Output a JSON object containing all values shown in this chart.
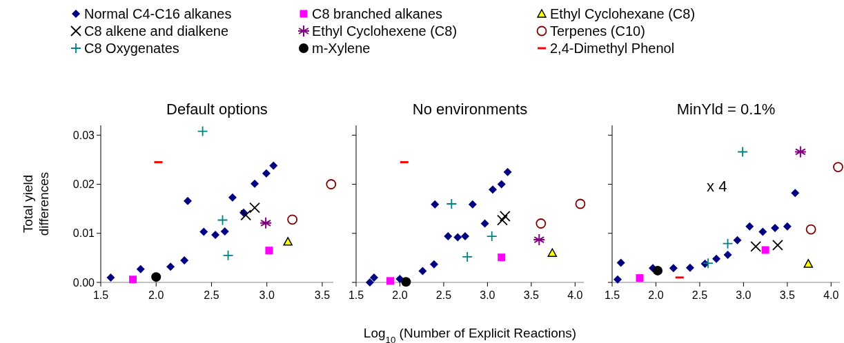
{
  "chart_data": [
    {
      "type": "scatter",
      "title": "Default options",
      "ylabel": "Total yield differences",
      "legend": "top",
      "grid": false,
      "xlim": [
        1.5,
        3.6
      ],
      "xticks": [
        {
          "value": 1.5,
          "label": "1.5"
        },
        {
          "value": 2,
          "label": "2.0"
        },
        {
          "value": 2.5,
          "label": "2.5"
        },
        {
          "value": 3,
          "label": "3.0"
        },
        {
          "value": 3.5,
          "label": "3.5"
        }
      ],
      "ylim": [
        0,
        0.032
      ],
      "yticks": [
        {
          "value": 0,
          "label": "0.00"
        },
        {
          "value": 0.01,
          "label": "0.01"
        },
        {
          "value": 0.02,
          "label": "0.02"
        },
        {
          "value": 0.03,
          "label": "0.03"
        }
      ],
      "series": [
        {
          "name": "Normal C4-C16 alkanes",
          "color": "#000080",
          "marker": "diamond",
          "x": [
            1.59,
            1.86,
            2.13,
            2.255,
            2.285,
            2.43,
            2.535,
            2.62,
            2.69,
            2.79,
            2.89,
            2.995,
            3.06
          ],
          "values": [
            0.001,
            0.0027,
            0.0032,
            0.0045,
            0.0166,
            0.0103,
            0.0097,
            0.0104,
            0.0173,
            0.0142,
            0.0201,
            0.0222,
            0.0238
          ]
        },
        {
          "name": "C8 branched alkanes",
          "color": "#ff00ff",
          "marker": "square",
          "x": [
            1.79,
            3.02
          ],
          "values": [
            0.0006,
            0.0065
          ]
        },
        {
          "name": "Ethyl Cyclohexane (C8)",
          "color": "#ffff00",
          "marker": "triangle",
          "x": [
            3.19
          ],
          "values": [
            0.0083
          ]
        },
        {
          "name": "C8 alkene and dialkene",
          "color": "#000000",
          "marker": "cross",
          "x": [
            2.81,
            2.89
          ],
          "values": [
            0.0137,
            0.0152
          ]
        },
        {
          "name": "Ethyl Cyclohexene (C8)",
          "color": "#800080",
          "marker": "star",
          "x": [
            2.99
          ],
          "values": [
            0.0121
          ]
        },
        {
          "name": "Terpenes (C10)",
          "color": "#800000",
          "marker": "circle-open",
          "x": [
            3.23,
            3.58
          ],
          "values": [
            0.0128,
            0.02
          ]
        },
        {
          "name": "C8 Oxygenates",
          "color": "#008080",
          "marker": "plus",
          "x": [
            2.42,
            2.6,
            2.65
          ],
          "values": [
            0.0308,
            0.0127,
            0.0055
          ]
        },
        {
          "name": "m-Xylene",
          "color": "#000000",
          "marker": "circle",
          "x": [
            2.0
          ],
          "values": [
            0.0011
          ]
        },
        {
          "name": "2,4-Dimethyl Phenol",
          "color": "#ff0000",
          "x": [
            2.02
          ],
          "values": [
            0.0245
          ]
        }
      ]
    },
    {
      "type": "scatter",
      "title": "No environments",
      "xlabel": "Log$_{10}$ (Number of Explicit Reactions)",
      "tick_labels": "x",
      "grid": false,
      "xlim": [
        1.5,
        4.1
      ],
      "xticks": [
        {
          "value": 1.5,
          "label": "1.5"
        },
        {
          "value": 2,
          "label": "2.0"
        },
        {
          "value": 2.5,
          "label": "2.5"
        },
        {
          "value": 3,
          "label": "3.0"
        },
        {
          "value": 3.5,
          "label": "3.5"
        },
        {
          "value": 4,
          "label": "4.0"
        }
      ],
      "ylim": [
        0,
        0.032
      ],
      "yticks": [
        {
          "value": 0,
          "label": null
        },
        {
          "value": 0.01,
          "label": null
        },
        {
          "value": 0.02,
          "label": null
        },
        {
          "value": 0.03,
          "label": null
        }
      ],
      "series": [
        {
          "color": "#000080",
          "marker": "diamond",
          "x": [
            1.657,
            1.705,
            2.0,
            2.26,
            2.39,
            2.4,
            2.55,
            2.66,
            2.745,
            2.83,
            2.97,
            3.06,
            3.16,
            3.23
          ],
          "values": [
            0,
            0.001,
            0.0007,
            0.0023,
            0.0037,
            0.0159,
            0.0094,
            0.0092,
            0.0094,
            0.0159,
            0.012,
            0.0189,
            0.02,
            0.0225
          ]
        },
        {
          "color": "#ff00ff",
          "marker": "square",
          "x": [
            1.89,
            3.16
          ],
          "values": [
            0.0003,
            0.0051
          ]
        },
        {
          "color": "#ffff00",
          "marker": "triangle",
          "x": [
            3.74
          ],
          "values": [
            0.006
          ]
        },
        {
          "color": "#000000",
          "marker": "cross",
          "x": [
            3.17,
            3.2
          ],
          "values": [
            0.0127,
            0.0135
          ]
        },
        {
          "color": "#800080",
          "marker": "star",
          "x": [
            3.59
          ],
          "values": [
            0.0087
          ]
        },
        {
          "color": "#800000",
          "marker": "circle-open",
          "x": [
            3.61,
            4.06
          ],
          "values": [
            0.012,
            0.016
          ]
        },
        {
          "color": "#008080",
          "marker": "plus",
          "x": [
            2.59,
            2.77,
            3.05
          ],
          "values": [
            0.016,
            0.0052,
            0.0094
          ]
        },
        {
          "color": "#000000",
          "marker": "circle",
          "x": [
            2.07
          ],
          "values": [
            0.0001
          ]
        },
        {
          "color": "#ff0000",
          "x": [
            2.05
          ],
          "values": [
            0.0245
          ]
        }
      ]
    },
    {
      "type": "scatter",
      "title": "MinYld = 0.1%",
      "tick_labels": "x",
      "grid": false,
      "annotations": [
        "x 4"
      ],
      "xlim": [
        1.5,
        4.1
      ],
      "xticks": [
        {
          "value": 1.5,
          "label": "1.5"
        },
        {
          "value": 2,
          "label": "2.0"
        },
        {
          "value": 2.5,
          "label": "2.5"
        },
        {
          "value": 3,
          "label": "3.0"
        },
        {
          "value": 3.5,
          "label": "3.5"
        },
        {
          "value": 4,
          "label": "4.0"
        }
      ],
      "ylim": [
        0,
        0.032
      ],
      "yticks": [
        {
          "value": 0,
          "label": null
        },
        {
          "value": 0.01,
          "label": null
        },
        {
          "value": 0.02,
          "label": null
        },
        {
          "value": 0.03,
          "label": null
        }
      ],
      "series": [
        {
          "color": "#000080",
          "marker": "diamond",
          "x": [
            1.563,
            1.6,
            1.965,
            2.2,
            2.39,
            2.56,
            2.69,
            2.82,
            2.93,
            3.07,
            3.22,
            3.36,
            3.5,
            3.59
          ],
          "values": [
            0.0006,
            0.004,
            0.0029,
            0.0029,
            0.003,
            0.0038,
            0.0048,
            0.0056,
            0.0086,
            0.0114,
            0.0103,
            0.0111,
            0.0114,
            0.0182
          ]
        },
        {
          "color": "#ff00ff",
          "marker": "square",
          "x": [
            1.815,
            3.25
          ],
          "values": [
            0.0009,
            0.0066
          ]
        },
        {
          "color": "#ffff00",
          "marker": "triangle",
          "x": [
            3.74
          ],
          "values": [
            0.0038
          ]
        },
        {
          "color": "#000000",
          "marker": "cross",
          "x": [
            3.14,
            3.39
          ],
          "values": [
            0.0073,
            0.0076
          ]
        },
        {
          "color": "#800080",
          "marker": "star",
          "x": [
            3.65
          ],
          "values": [
            0.0266
          ]
        },
        {
          "color": "#800000",
          "marker": "circle-open",
          "x": [
            3.77,
            4.08
          ],
          "values": [
            0.0108,
            0.0235
          ]
        },
        {
          "color": "#008080",
          "marker": "plus",
          "x": [
            2.595,
            2.82,
            2.99
          ],
          "values": [
            0.0039,
            0.0079,
            0.0266
          ]
        },
        {
          "color": "#000000",
          "marker": "circle",
          "x": [
            2.02
          ],
          "values": [
            0.0024
          ]
        },
        {
          "color": "#ff0000",
          "x": [
            2.27
          ],
          "values": [
            0.001
          ]
        }
      ]
    }
  ]
}
